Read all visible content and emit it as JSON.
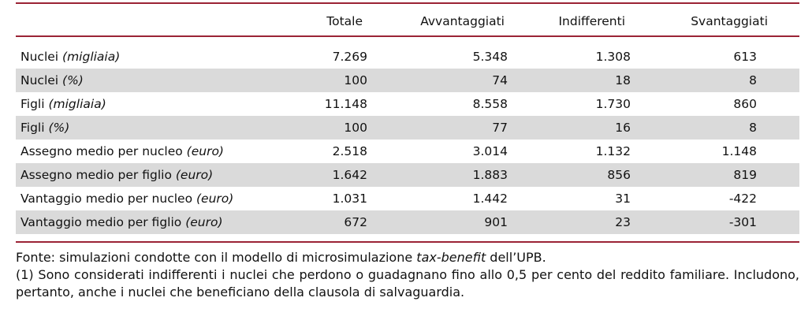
{
  "table": {
    "headers": [
      "",
      "Totale",
      "Avvantaggiati",
      "Indifferenti",
      "Svantaggiati"
    ],
    "rows": [
      {
        "label": "Nuclei",
        "unit": "(migliaia)",
        "values": [
          "7.269",
          "5.348",
          "1.308",
          "613"
        ]
      },
      {
        "label": "Nuclei",
        "unit": "(%)",
        "values": [
          "100",
          "74",
          "18",
          "8"
        ]
      },
      {
        "label": "Figli",
        "unit": "(migliaia)",
        "values": [
          "11.148",
          "8.558",
          "1.730",
          "860"
        ]
      },
      {
        "label": "Figli",
        "unit": "(%)",
        "values": [
          "100",
          "77",
          "16",
          "8"
        ]
      },
      {
        "label": "Assegno medio per nucleo",
        "unit": "(euro)",
        "values": [
          "2.518",
          "3.014",
          "1.132",
          "1.148"
        ]
      },
      {
        "label": "Assegno medio per figlio",
        "unit": "(euro)",
        "values": [
          "1.642",
          "1.883",
          "856",
          "819"
        ]
      },
      {
        "label": "Vantaggio medio per nucleo",
        "unit": "(euro)",
        "values": [
          "1.031",
          "1.442",
          "31",
          "-422"
        ]
      },
      {
        "label": "Vantaggio medio per figlio",
        "unit": "(euro)",
        "values": [
          "672",
          "901",
          "23",
          "-301"
        ]
      }
    ]
  },
  "notes": {
    "source_prefix": "Fonte: simulazioni condotte con il modello di microsimulazione ",
    "source_em": "tax-benefit",
    "source_suffix": " dell’UPB.",
    "note1": "(1) Sono considerati indifferenti i nuclei che perdono o guadagnano fino allo 0,5 per cento del reddito familiare. Includono, pertanto, anche i nuclei che beneficiano della clausola di salvaguardia."
  },
  "colors": {
    "rule": "#9b2335",
    "shade": "#dadada"
  }
}
